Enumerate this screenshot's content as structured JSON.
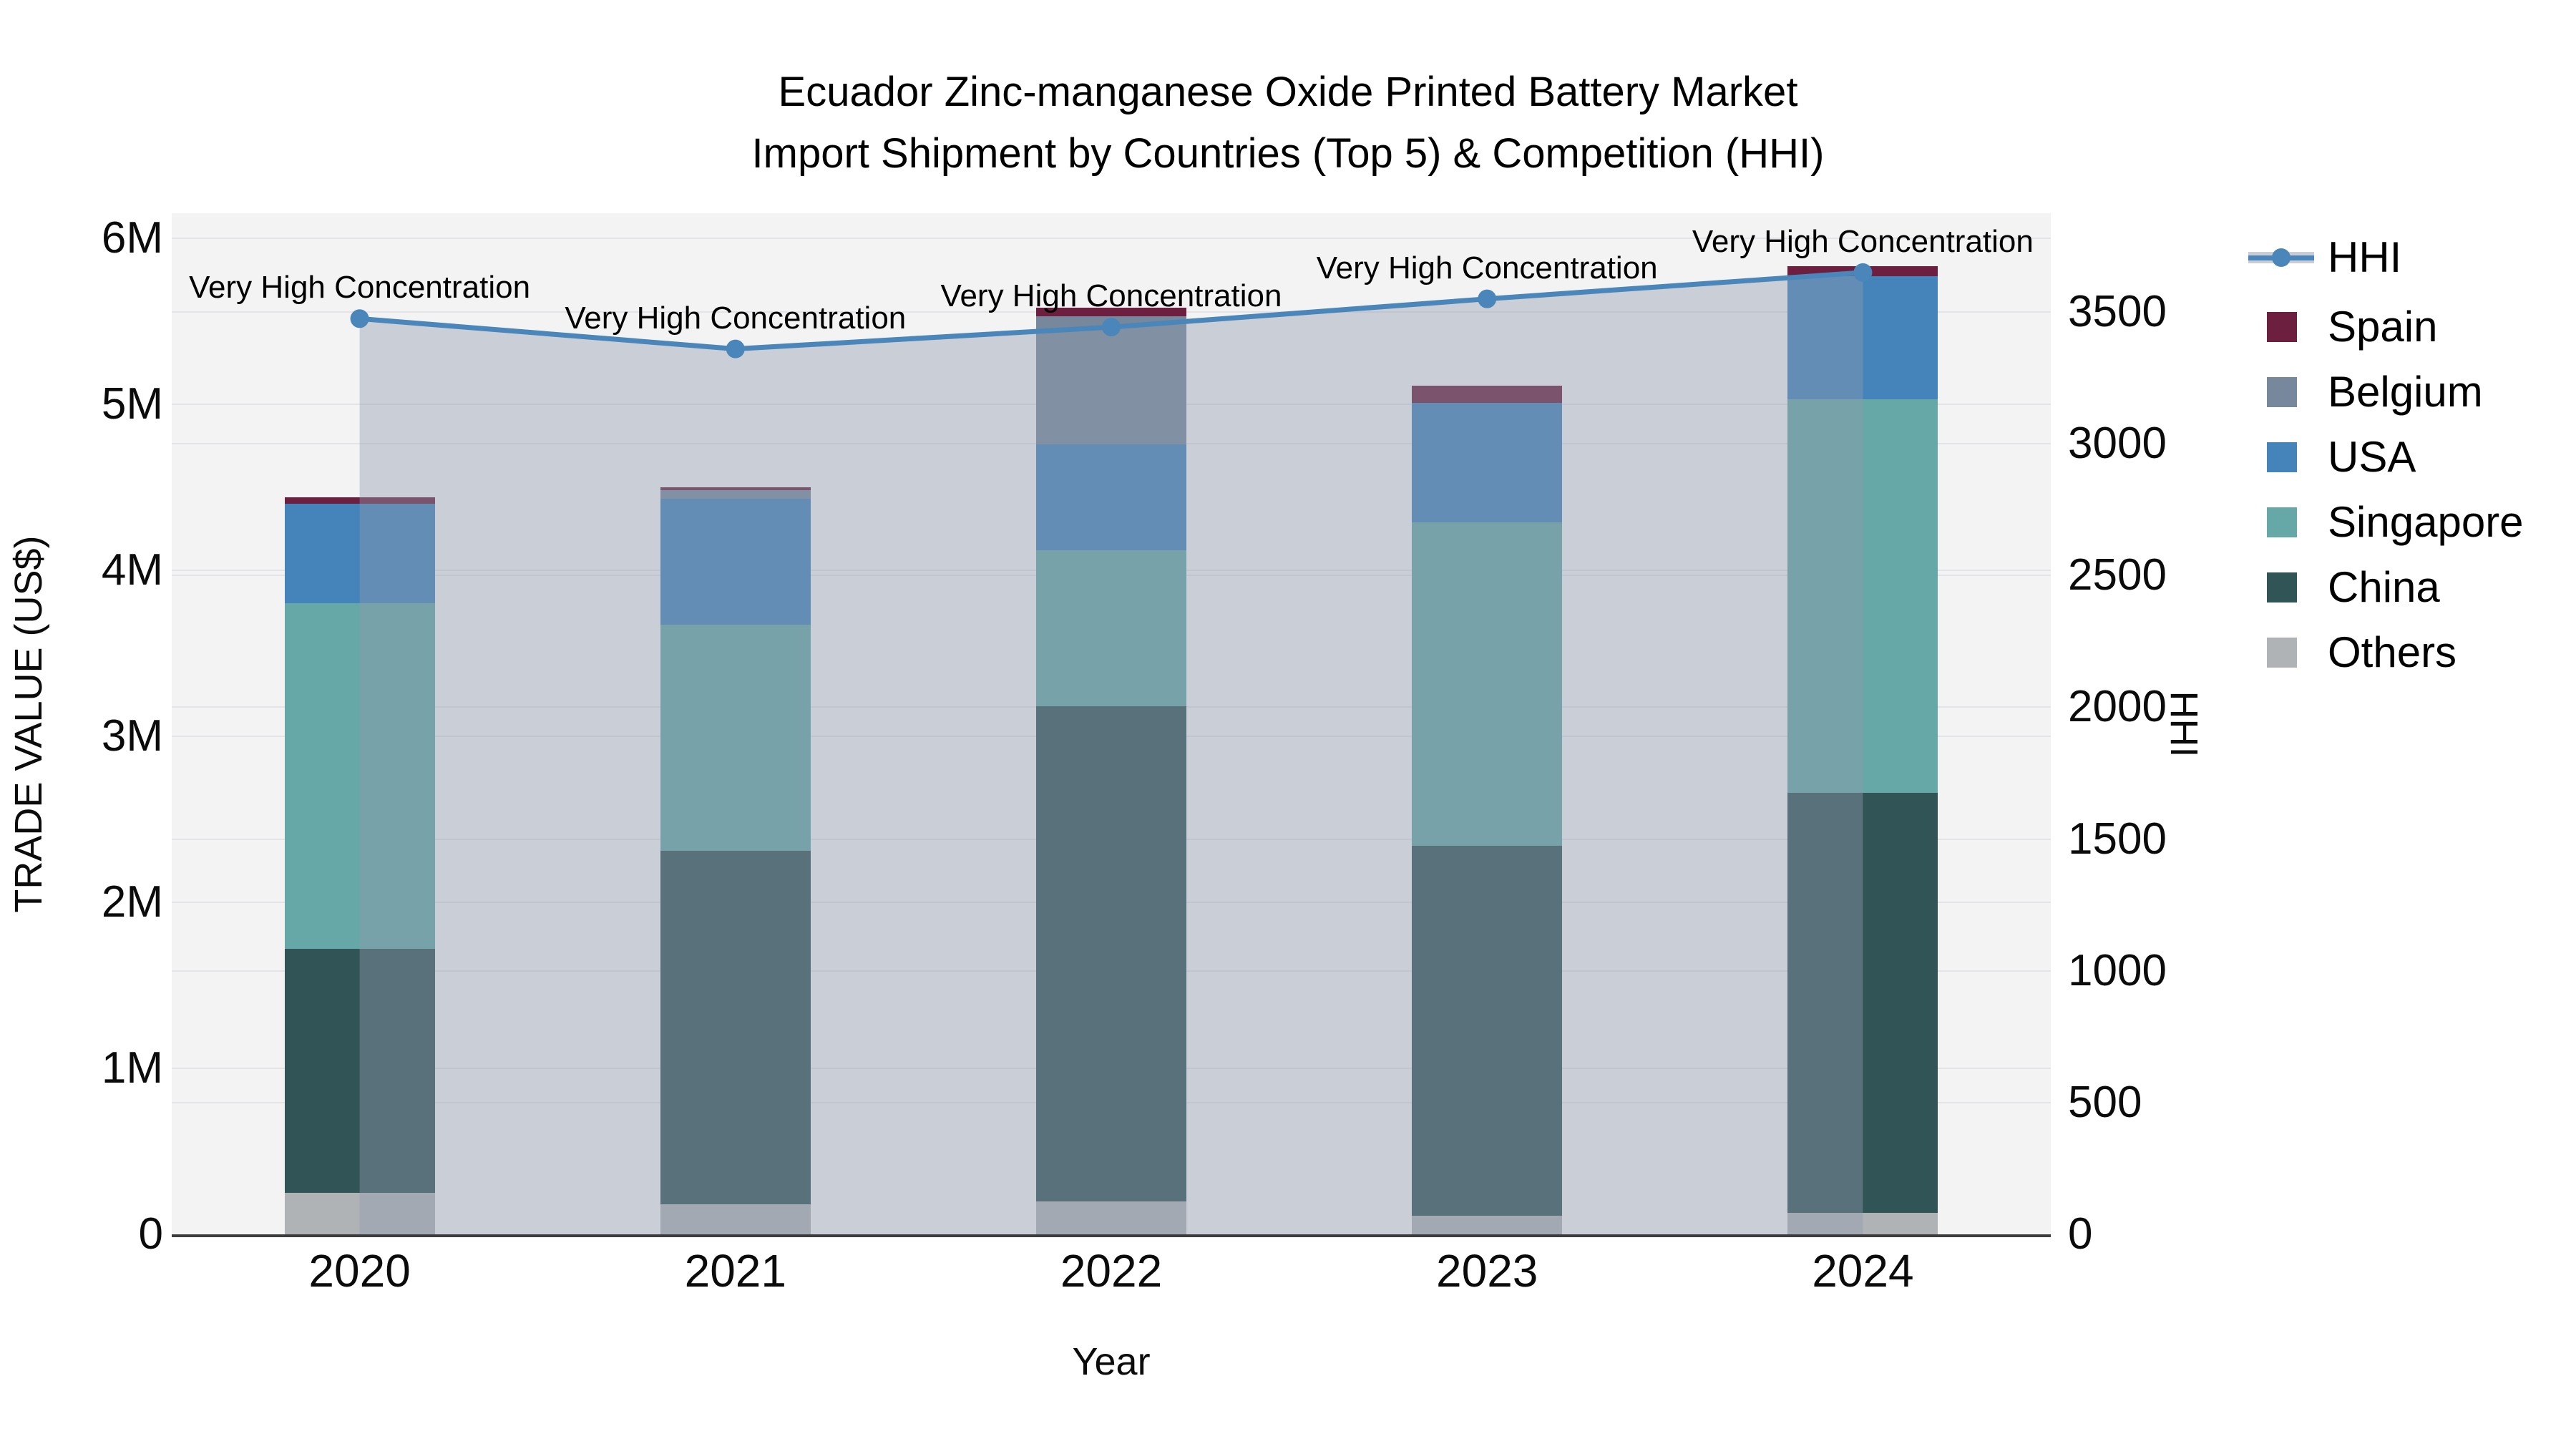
{
  "title": {
    "line1": "Ecuador Zinc-manganese Oxide Printed Battery Market",
    "line2": "Import Shipment by Countries (Top 5) & Competition (HHI)"
  },
  "axes": {
    "x": {
      "title": "Year"
    },
    "y_left": {
      "title": "TRADE VALUE (US$)"
    },
    "y_right": {
      "title": "HHI"
    }
  },
  "legend": {
    "items": [
      "HHI",
      "Spain",
      "Belgium",
      "USA",
      "Singapore",
      "China",
      "Others"
    ]
  },
  "annotation_text": "Very High Concentration",
  "chart_data": {
    "type": "bar",
    "subtype": "stacked-bars-with-line-overlay",
    "title": "Ecuador Zinc-manganese Oxide Printed Battery Market Import Shipment by Countries (Top 5) & Competition (HHI)",
    "categories": [
      "2020",
      "2021",
      "2022",
      "2023",
      "2024"
    ],
    "bar_value_unit": "million US$",
    "stack_order_bottom_to_top": [
      "Others",
      "China",
      "Singapore",
      "USA",
      "Belgium",
      "Spain"
    ],
    "series": [
      {
        "name": "Others",
        "color": "#b0b3b5",
        "values": [
          0.25,
          0.18,
          0.2,
          0.11,
          0.13
        ]
      },
      {
        "name": "China",
        "color": "#315456",
        "values": [
          1.47,
          2.13,
          2.98,
          2.23,
          2.53
        ]
      },
      {
        "name": "Singapore",
        "color": "#66a8a8",
        "values": [
          2.08,
          1.36,
          0.94,
          1.95,
          2.37
        ]
      },
      {
        "name": "USA",
        "color": "#4583bb",
        "values": [
          0.6,
          0.76,
          0.64,
          0.72,
          0.74
        ]
      },
      {
        "name": "Belgium",
        "color": "#78889c",
        "values": [
          0.0,
          0.05,
          0.77,
          0.0,
          0.0
        ]
      },
      {
        "name": "Spain",
        "color": "#6d1f3f",
        "values": [
          0.04,
          0.02,
          0.05,
          0.1,
          0.06
        ]
      }
    ],
    "line": {
      "name": "HHI",
      "color": "#4a86ba",
      "area_fill": "rgba(144,155,175,0.42)",
      "values": [
        3475,
        3360,
        3443,
        3550,
        3650
      ]
    },
    "annotations": [
      "Very High Concentration",
      "Very High Concentration",
      "Very High Concentration",
      "Very High Concentration",
      "Very High Concentration"
    ],
    "xlabel": "Year",
    "ylabel_left": "TRADE VALUE (US$)",
    "ylabel_right": "HHI",
    "y_left": {
      "tick_labels": [
        "0",
        "1M",
        "2M",
        "3M",
        "4M",
        "5M",
        "6M"
      ],
      "tick_values_musd": [
        0,
        1,
        2,
        3,
        4,
        5,
        6
      ],
      "range_max_musd": 6.15
    },
    "y_right": {
      "tick_values": [
        0,
        500,
        1000,
        1500,
        2000,
        2500,
        3000,
        3500
      ],
      "range_max": 3875
    },
    "grid": "horizontal gridlines for both y axes",
    "legend_position": "outside top-right",
    "plot_background": "#f3f3f4"
  }
}
